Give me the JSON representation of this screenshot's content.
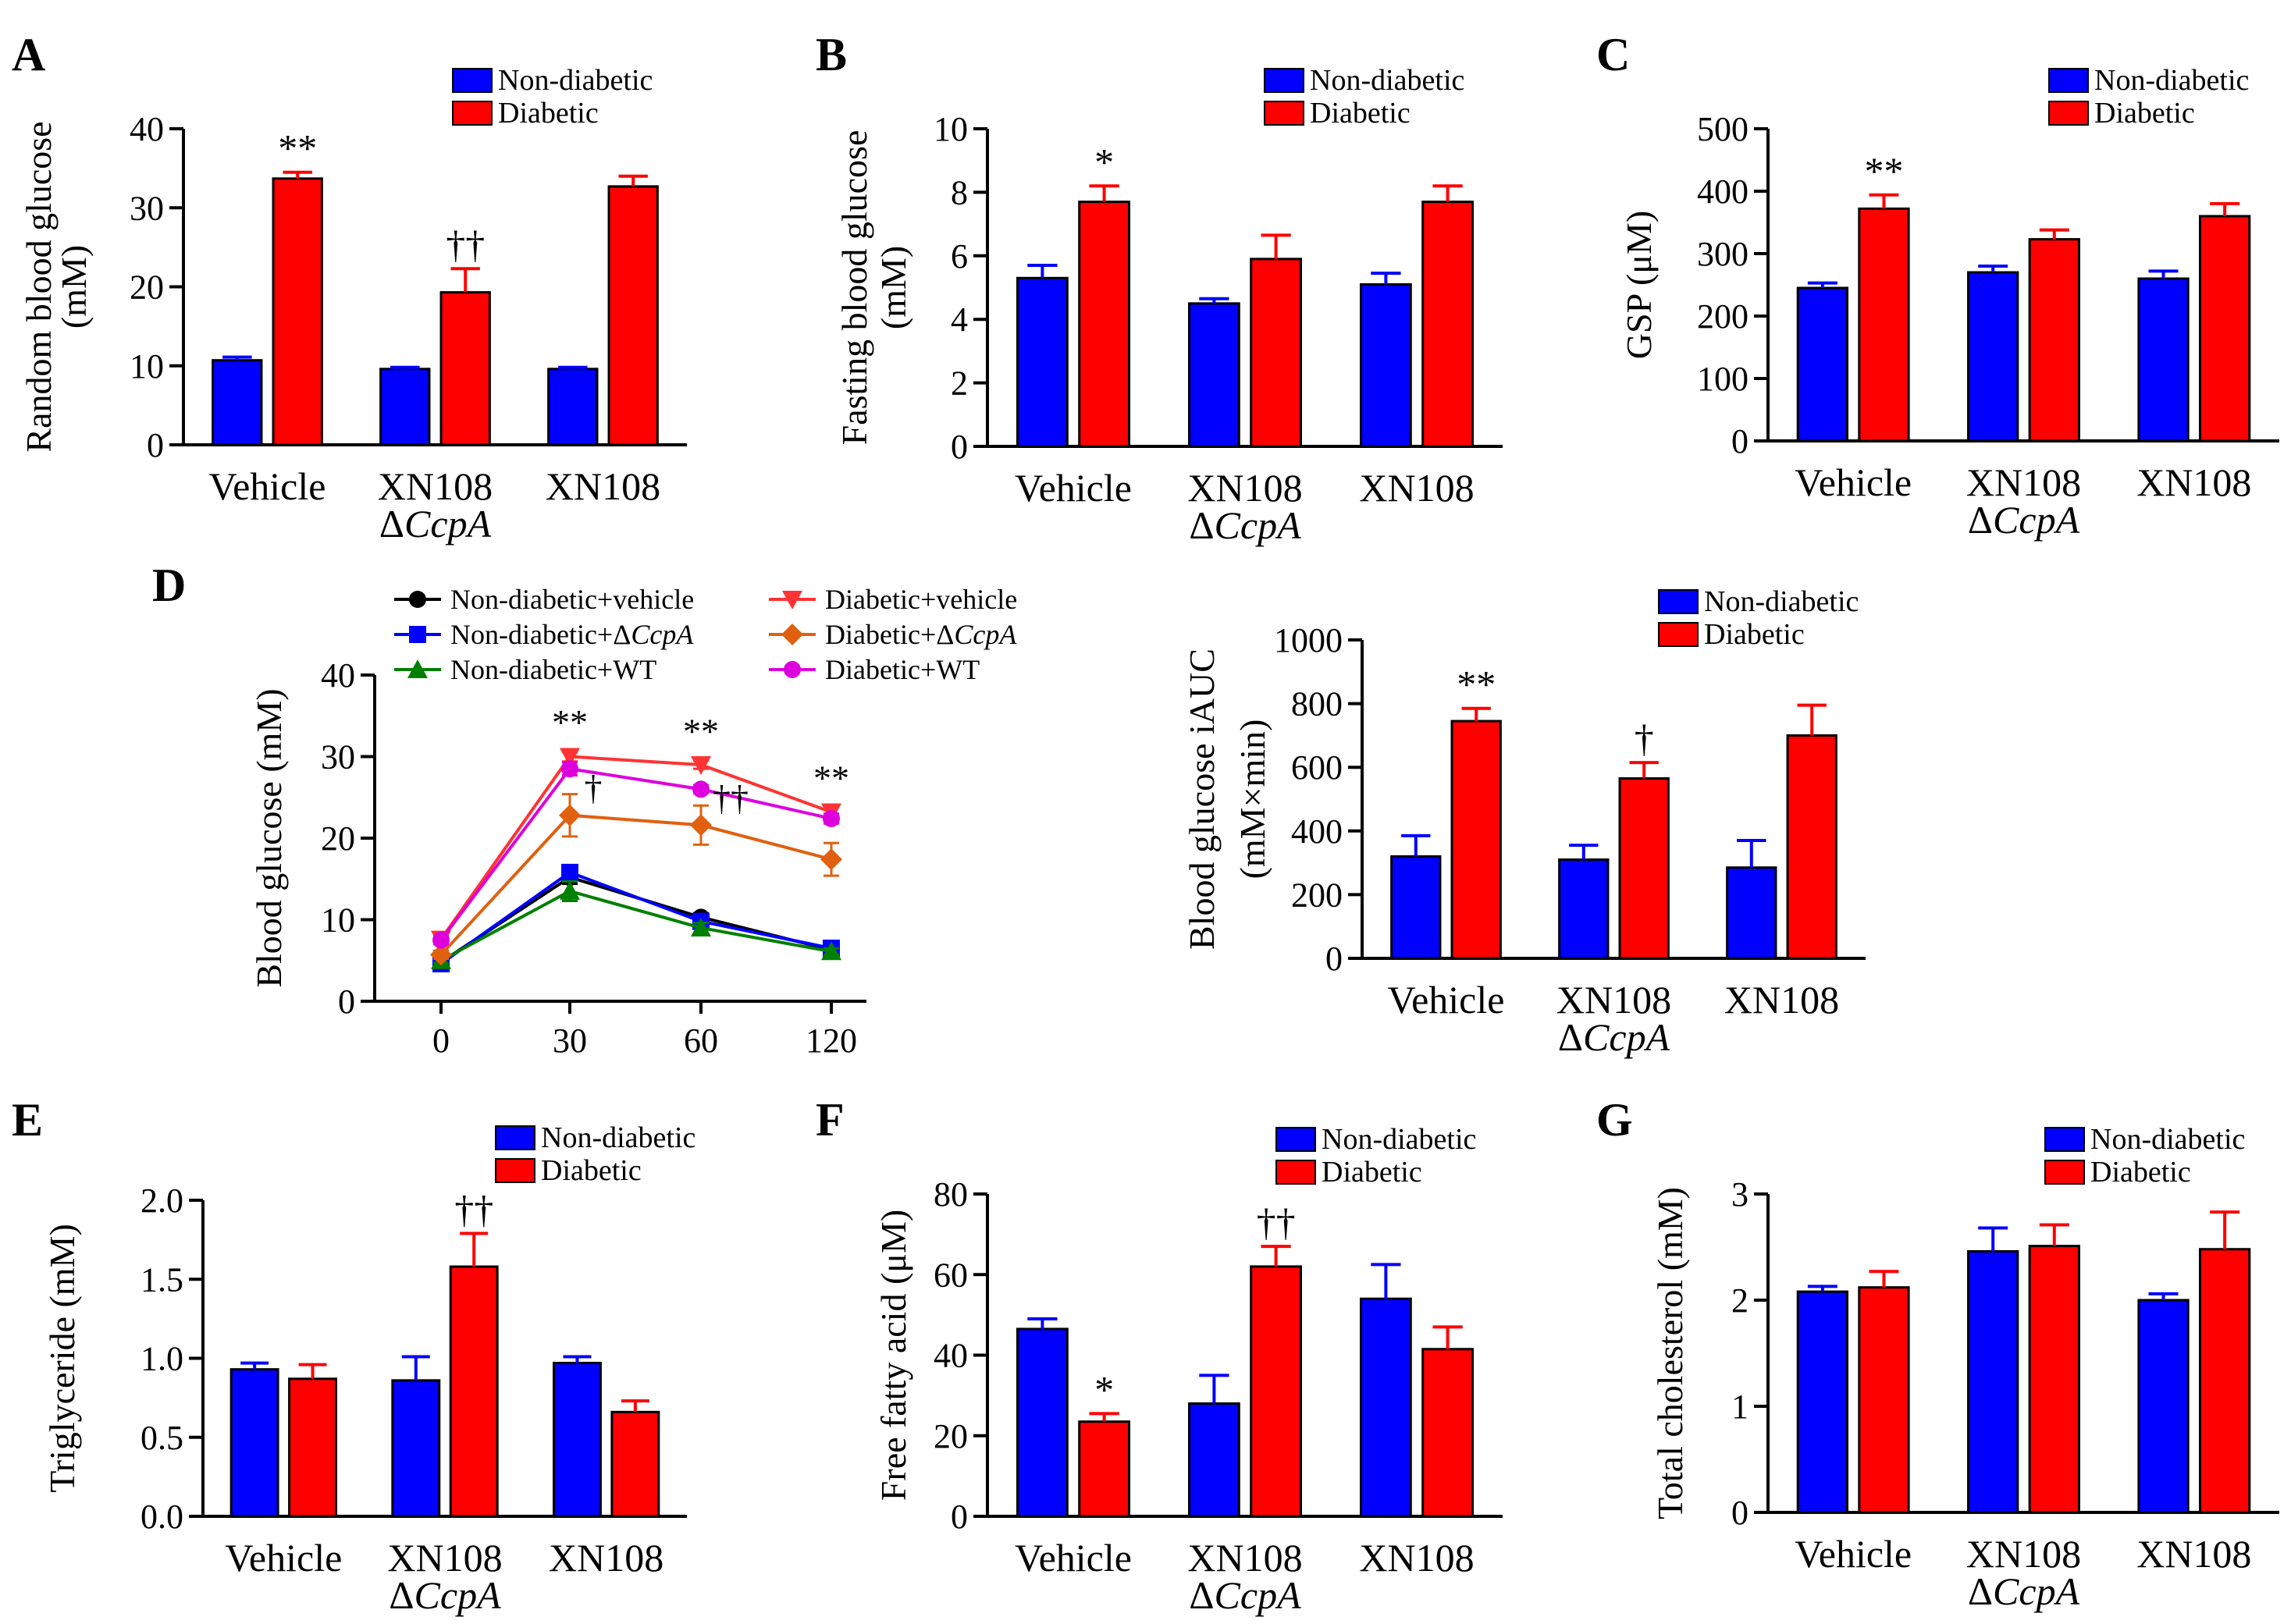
{
  "colors": {
    "non_diabetic": "#0000ff",
    "diabetic": "#ff0000",
    "axis": "#000000"
  },
  "chart_data": [
    {
      "id": "A",
      "type": "bar",
      "panel_label": "A",
      "ylabel_lines": [
        "Random blood glucose",
        "(mM)"
      ],
      "ylim": [
        0,
        40
      ],
      "yticks": [
        0,
        10,
        20,
        30,
        40
      ],
      "category_lines": [
        [
          "Vehicle"
        ],
        [
          "XN108",
          "ΔCcpA"
        ],
        [
          "XN108"
        ]
      ],
      "legend": [
        "Non-diabetic",
        "Diabetic"
      ],
      "series": [
        {
          "name": "Non-diabetic",
          "values": [
            10.7,
            9.6,
            9.6
          ],
          "errors": [
            0.4,
            0.2,
            0.2
          ]
        },
        {
          "name": "Diabetic",
          "values": [
            33.7,
            19.3,
            32.7
          ],
          "errors": [
            0.8,
            3.0,
            1.3
          ]
        }
      ],
      "annotations": [
        {
          "category": 0,
          "series": 1,
          "text": "**"
        },
        {
          "category": 1,
          "series": 1,
          "text": "††"
        }
      ]
    },
    {
      "id": "B",
      "type": "bar",
      "panel_label": "B",
      "ylabel_lines": [
        "Fasting blood glucose",
        "(mM)"
      ],
      "ylim": [
        0,
        10
      ],
      "yticks": [
        0,
        2,
        4,
        6,
        8,
        10
      ],
      "category_lines": [
        [
          "Vehicle"
        ],
        [
          "XN108",
          "ΔCcpA"
        ],
        [
          "XN108"
        ]
      ],
      "legend": [
        "Non-diabetic",
        "Diabetic"
      ],
      "series": [
        {
          "name": "Non-diabetic",
          "values": [
            5.3,
            4.5,
            5.1
          ],
          "errors": [
            0.4,
            0.15,
            0.35
          ]
        },
        {
          "name": "Diabetic",
          "values": [
            7.7,
            5.9,
            7.7
          ],
          "errors": [
            0.5,
            0.75,
            0.5
          ]
        }
      ],
      "annotations": [
        {
          "category": 0,
          "series": 1,
          "text": "*"
        }
      ]
    },
    {
      "id": "C",
      "type": "bar",
      "panel_label": "C",
      "ylabel_lines": [
        "GSP (μM)"
      ],
      "ylim": [
        0,
        500
      ],
      "yticks": [
        0,
        100,
        200,
        300,
        400,
        500
      ],
      "category_lines": [
        [
          "Vehicle"
        ],
        [
          "XN108",
          "ΔCcpA"
        ],
        [
          "XN108"
        ]
      ],
      "legend": [
        "Non-diabetic",
        "Diabetic"
      ],
      "series": [
        {
          "name": "Non-diabetic",
          "values": [
            245,
            270,
            260
          ],
          "errors": [
            8,
            10,
            12
          ]
        },
        {
          "name": "Diabetic",
          "values": [
            372,
            323,
            360
          ],
          "errors": [
            22,
            15,
            20
          ]
        }
      ],
      "annotations": [
        {
          "category": 0,
          "series": 1,
          "text": "**"
        }
      ]
    },
    {
      "id": "D1",
      "type": "line",
      "panel_label": "D",
      "ylabel_lines": [
        "Blood glucose (mM)"
      ],
      "ylim": [
        0,
        40
      ],
      "yticks": [
        0,
        10,
        20,
        30,
        40
      ],
      "x_labels": [
        "0",
        "30",
        "60",
        "120"
      ],
      "series": [
        {
          "name": "Non-diabetic+vehicle",
          "label_main": "Non-diabetic+vehicle",
          "label_italic": "",
          "color": "#000000",
          "marker": "circle",
          "values": [
            4.8,
            15.2,
            10.3,
            6.3
          ],
          "errors": [
            0.3,
            0.8,
            0.5,
            0.4
          ]
        },
        {
          "name": "Non-diabetic+ΔCcpA",
          "label_main": "Non-diabetic+Δ",
          "label_italic": "CcpA",
          "color": "#0000ff",
          "marker": "square",
          "values": [
            4.6,
            15.8,
            9.8,
            6.5
          ],
          "errors": [
            0.3,
            0.8,
            0.5,
            0.4
          ]
        },
        {
          "name": "Non-diabetic+WT",
          "label_main": "Non-diabetic+WT",
          "label_italic": "",
          "color": "#008000",
          "marker": "triangle",
          "values": [
            5.0,
            13.5,
            9.0,
            6.1
          ],
          "errors": [
            0.3,
            1.2,
            0.6,
            0.4
          ]
        },
        {
          "name": "Diabetic+vehicle",
          "label_main": "Diabetic+vehicle",
          "label_italic": "",
          "color": "#ff3333",
          "marker": "triangle-down",
          "values": [
            7.6,
            30.0,
            29.0,
            23.2
          ],
          "errors": [
            0.5,
            0.6,
            0.5,
            0.6
          ]
        },
        {
          "name": "Diabetic+ΔCcpA",
          "label_main": "Diabetic+Δ",
          "label_italic": "CcpA",
          "color": "#e06010",
          "marker": "diamond",
          "values": [
            5.7,
            22.8,
            21.6,
            17.4
          ],
          "errors": [
            0.5,
            2.6,
            2.4,
            2.0
          ]
        },
        {
          "name": "Diabetic+WT",
          "label_main": "Diabetic+WT",
          "label_italic": "",
          "color": "#dd00dd",
          "marker": "circle",
          "values": [
            7.5,
            28.5,
            26.0,
            22.4
          ],
          "errors": [
            0.5,
            0.8,
            0.5,
            0.6
          ]
        }
      ],
      "annotations": [
        {
          "x_index": 1,
          "text": "**",
          "pos": "above"
        },
        {
          "x_index": 2,
          "text": "**",
          "pos": "above"
        },
        {
          "x_index": 3,
          "text": "**",
          "pos": "above"
        },
        {
          "x_index": 1,
          "text": "†",
          "pos": "right"
        },
        {
          "x_index": 2,
          "text": "††",
          "pos": "right"
        }
      ]
    },
    {
      "id": "D2",
      "type": "bar",
      "ylabel_lines": [
        "Blood glucose iAUC",
        "(mM×min)"
      ],
      "ylim": [
        0,
        1000
      ],
      "yticks": [
        0,
        200,
        400,
        600,
        800,
        1000
      ],
      "category_lines": [
        [
          "Vehicle"
        ],
        [
          "XN108",
          "ΔCcpA"
        ],
        [
          "XN108"
        ]
      ],
      "legend": [
        "Non-diabetic",
        "Diabetic"
      ],
      "series": [
        {
          "name": "Non-diabetic",
          "values": [
            320,
            310,
            285
          ],
          "errors": [
            65,
            45,
            85
          ]
        },
        {
          "name": "Diabetic",
          "values": [
            745,
            565,
            700
          ],
          "errors": [
            40,
            50,
            95
          ]
        }
      ],
      "annotations": [
        {
          "category": 0,
          "series": 1,
          "text": "**"
        },
        {
          "category": 1,
          "series": 1,
          "text": "†"
        }
      ]
    },
    {
      "id": "E",
      "type": "bar",
      "panel_label": "E",
      "ylabel_lines": [
        "Triglyceride (mM)"
      ],
      "ylim": [
        0,
        2.0
      ],
      "yticks": [
        "0.0",
        "0.5",
        "1.0",
        "1.5",
        "2.0"
      ],
      "category_lines": [
        [
          "Vehicle"
        ],
        [
          "XN108",
          "ΔCcpA"
        ],
        [
          "XN108"
        ]
      ],
      "legend": [
        "Non-diabetic",
        "Diabetic"
      ],
      "series": [
        {
          "name": "Non-diabetic",
          "values": [
            0.93,
            0.86,
            0.97
          ],
          "errors": [
            0.04,
            0.15,
            0.04
          ]
        },
        {
          "name": "Diabetic",
          "values": [
            0.87,
            1.58,
            0.66
          ],
          "errors": [
            0.09,
            0.21,
            0.07
          ]
        }
      ],
      "annotations": [
        {
          "category": 1,
          "series": 1,
          "text": "††"
        }
      ]
    },
    {
      "id": "F",
      "type": "bar",
      "panel_label": "F",
      "ylabel_lines": [
        "Free fatty acid (μM)"
      ],
      "ylim": [
        0,
        80
      ],
      "yticks": [
        0,
        20,
        40,
        60,
        80
      ],
      "category_lines": [
        [
          "Vehicle"
        ],
        [
          "XN108",
          "ΔCcpA"
        ],
        [
          "XN108"
        ]
      ],
      "legend": [
        "Non-diabetic",
        "Diabetic"
      ],
      "series": [
        {
          "name": "Non-diabetic",
          "values": [
            46.5,
            28,
            54
          ],
          "errors": [
            2.5,
            7,
            8.5
          ]
        },
        {
          "name": "Diabetic",
          "values": [
            23.5,
            62,
            41.5
          ],
          "errors": [
            2,
            5,
            5.5
          ]
        }
      ],
      "annotations": [
        {
          "category": 0,
          "series": 1,
          "text": "*"
        },
        {
          "category": 1,
          "series": 1,
          "text": "††"
        }
      ]
    },
    {
      "id": "G",
      "type": "bar",
      "panel_label": "G",
      "ylabel_lines": [
        "Total cholesterol (mM)"
      ],
      "ylim": [
        0,
        3
      ],
      "yticks": [
        0,
        1,
        2,
        3
      ],
      "category_lines": [
        [
          "Vehicle"
        ],
        [
          "XN108",
          "ΔCcpA"
        ],
        [
          "XN108"
        ]
      ],
      "legend": [
        "Non-diabetic",
        "Diabetic"
      ],
      "series": [
        {
          "name": "Non-diabetic",
          "values": [
            2.08,
            2.46,
            2.0
          ],
          "errors": [
            0.05,
            0.22,
            0.06
          ]
        },
        {
          "name": "Diabetic",
          "values": [
            2.12,
            2.51,
            2.48
          ],
          "errors": [
            0.15,
            0.2,
            0.35
          ]
        }
      ],
      "annotations": []
    }
  ]
}
